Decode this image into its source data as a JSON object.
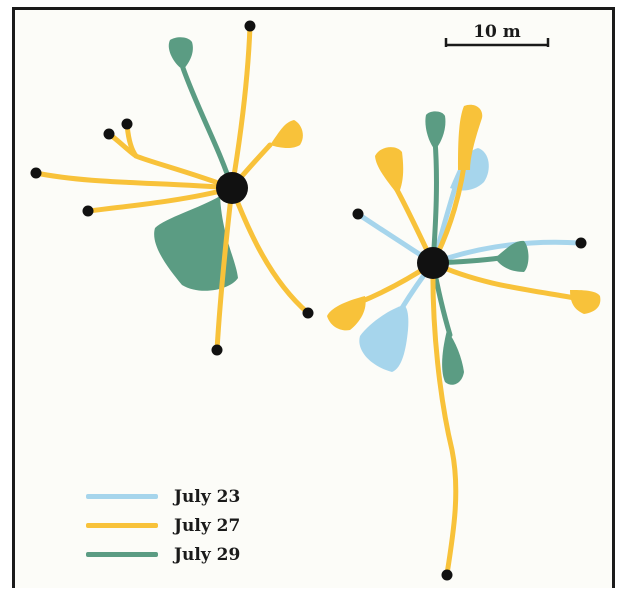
{
  "colors": {
    "july23": "#a6d5ec",
    "july27": "#f8c23a",
    "july29": "#5b9c83",
    "point": "#111111"
  },
  "scale_bar": {
    "label": "10 m"
  },
  "legend": [
    {
      "label": "July 23",
      "color_key": "july23"
    },
    {
      "label": "July 27",
      "color_key": "july27"
    },
    {
      "label": "July 29",
      "color_key": "july29"
    }
  ]
}
